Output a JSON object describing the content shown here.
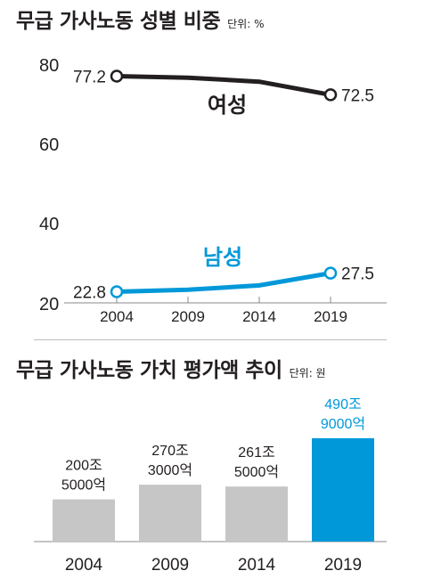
{
  "chart_data": [
    {
      "type": "line",
      "title": "무급 가사노동 성별 비중",
      "unit": "단위: %",
      "x": [
        "2004",
        "2009",
        "2014",
        "2019"
      ],
      "yticks": [
        "80",
        "60",
        "40",
        "20"
      ],
      "ylim": [
        20,
        80
      ],
      "series": [
        {
          "name": "여성",
          "color": "#231f20",
          "values": [
            77.2,
            null,
            null,
            72.5
          ],
          "path": [
            77.2,
            76.8,
            75.8,
            72.5
          ],
          "labels": [
            "77.2",
            "72.5"
          ]
        },
        {
          "name": "남성",
          "color": "#0098d9",
          "values": [
            22.8,
            null,
            null,
            27.5
          ],
          "path": [
            22.8,
            23.3,
            24.4,
            27.5
          ],
          "labels": [
            "22.8",
            "27.5"
          ]
        }
      ]
    },
    {
      "type": "bar",
      "title": "무급 가사노동 가치 평가액 추이",
      "unit": "단위: 원",
      "categories": [
        "2004",
        "2009",
        "2014",
        "2019"
      ],
      "values": [
        200.5,
        270.3,
        261.5,
        490.9
      ],
      "value_labels": [
        [
          "200조",
          "5000억"
        ],
        [
          "270조",
          "3000억"
        ],
        [
          "261조",
          "5000억"
        ],
        [
          "490조",
          "9000억"
        ]
      ],
      "colors": [
        "#c6c6c6",
        "#c6c6c6",
        "#c6c6c6",
        "#0098d9"
      ]
    }
  ]
}
